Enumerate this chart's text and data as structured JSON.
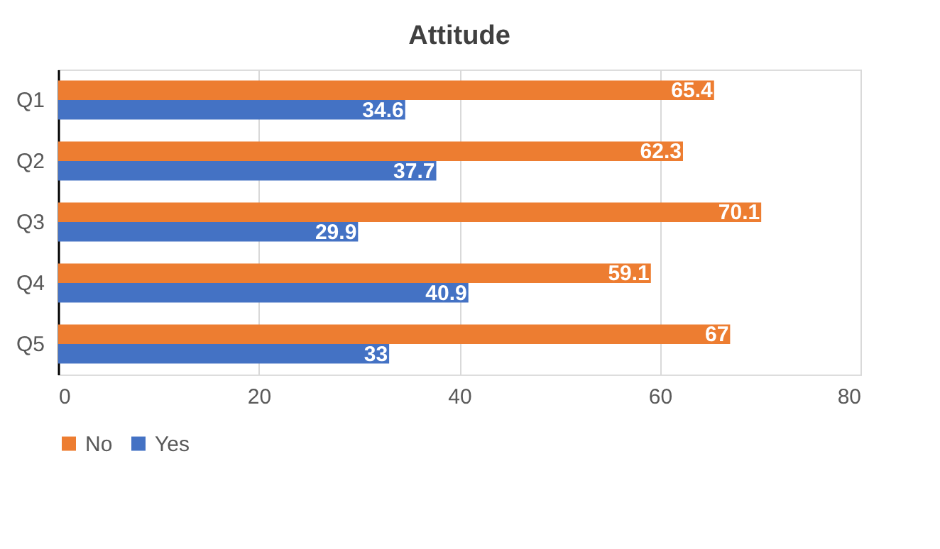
{
  "chart_data": {
    "type": "bar",
    "title": "Attitude",
    "orientation": "horizontal",
    "categories": [
      "Q1",
      "Q2",
      "Q3",
      "Q4",
      "Q5"
    ],
    "series": [
      {
        "name": "No",
        "color": "#ed7d31",
        "values": [
          65.4,
          62.3,
          70.1,
          59.1,
          67
        ]
      },
      {
        "name": "Yes",
        "color": "#4472c4",
        "values": [
          34.6,
          37.7,
          29.9,
          40.9,
          33
        ]
      }
    ],
    "xlim": [
      0,
      80
    ],
    "xticks": [
      0,
      20,
      40,
      60,
      80
    ],
    "grid": "x",
    "legend": "bottom",
    "data_labels": true
  }
}
